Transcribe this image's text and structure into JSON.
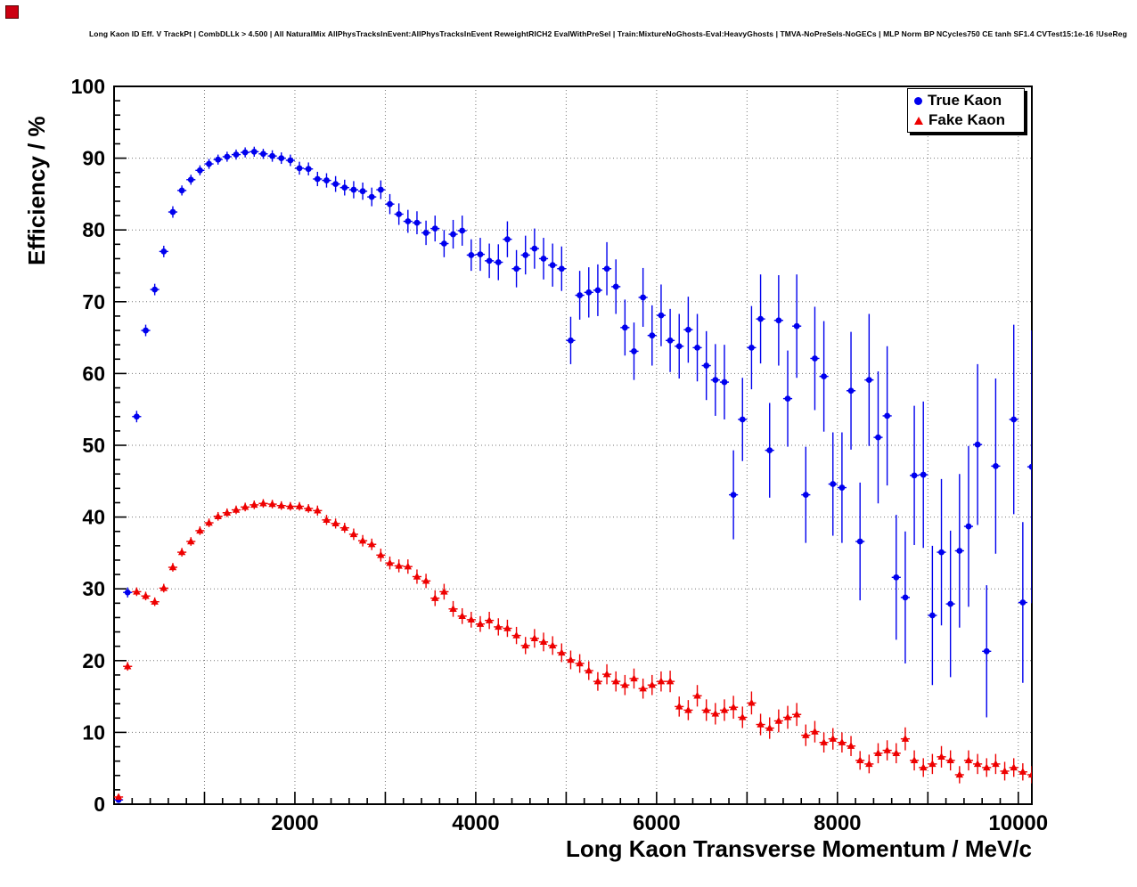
{
  "chart_data": {
    "type": "scatter",
    "title": "Long Kaon ID Eff. V TrackPt | CombDLLk > 4.500 | All NaturalMix AllPhysTracksInEvent:AllPhysTracksInEvent ReweightRICH2 EvalWithPreSel | Train:MixtureNoGhosts-Eval:HeavyGhosts | TMVA-NoPreSels-NoGECs | MLP Norm BP NCycles750 CE tanh SF1.4 CVTest15:1e-16 !UseReg",
    "xlabel": "Long Kaon Transverse Momentum / MeV/c",
    "ylabel": "Efficiency / %",
    "xlim": [
      0,
      10150
    ],
    "ylim": [
      0,
      100
    ],
    "xticks": [
      2000,
      4000,
      6000,
      8000,
      10000
    ],
    "yticks": [
      0,
      10,
      20,
      30,
      40,
      50,
      60,
      70,
      80,
      90,
      100
    ],
    "x_major_step": 1000,
    "x_minor_step": 200,
    "y_major_step": 10,
    "y_minor_step": 2,
    "x_bin_halfwidth": 50,
    "grid": true,
    "grid_style": "dotted",
    "legend_position": "top-right",
    "frame_color": "#000000",
    "background_color": "#ffffff",
    "series": [
      {
        "name": "True Kaon",
        "color": "#0000ee",
        "marker": "circle",
        "points": [
          [
            50,
            0.6,
            0.4
          ],
          [
            150,
            29.5,
            0.7
          ],
          [
            250,
            54.0,
            0.8
          ],
          [
            350,
            66.0,
            0.8
          ],
          [
            450,
            71.7,
            0.8
          ],
          [
            550,
            77.0,
            0.8
          ],
          [
            650,
            82.5,
            0.8
          ],
          [
            750,
            85.5,
            0.7
          ],
          [
            850,
            87.0,
            0.7
          ],
          [
            950,
            88.3,
            0.7
          ],
          [
            1050,
            89.2,
            0.7
          ],
          [
            1150,
            89.8,
            0.7
          ],
          [
            1250,
            90.2,
            0.7
          ],
          [
            1350,
            90.5,
            0.7
          ],
          [
            1450,
            90.8,
            0.7
          ],
          [
            1550,
            90.9,
            0.7
          ],
          [
            1650,
            90.6,
            0.7
          ],
          [
            1750,
            90.3,
            0.8
          ],
          [
            1850,
            90.0,
            0.8
          ],
          [
            1950,
            89.7,
            0.8
          ],
          [
            2050,
            88.6,
            0.9
          ],
          [
            2150,
            88.5,
            0.9
          ],
          [
            2250,
            87.1,
            1.0
          ],
          [
            2350,
            86.9,
            1.0
          ],
          [
            2450,
            86.4,
            1.1
          ],
          [
            2550,
            85.9,
            1.1
          ],
          [
            2650,
            85.6,
            1.2
          ],
          [
            2750,
            85.4,
            1.2
          ],
          [
            2850,
            84.6,
            1.3
          ],
          [
            2950,
            85.6,
            1.3
          ],
          [
            3050,
            83.6,
            1.4
          ],
          [
            3150,
            82.2,
            1.5
          ],
          [
            3250,
            81.2,
            1.6
          ],
          [
            3350,
            81.0,
            1.6
          ],
          [
            3450,
            79.6,
            1.7
          ],
          [
            3550,
            80.2,
            1.8
          ],
          [
            3650,
            78.1,
            1.9
          ],
          [
            3750,
            79.4,
            2.0
          ],
          [
            3850,
            79.9,
            2.1
          ],
          [
            3950,
            76.5,
            2.2
          ],
          [
            4050,
            76.6,
            2.3
          ],
          [
            4150,
            75.7,
            2.4
          ],
          [
            4250,
            75.5,
            2.5
          ],
          [
            4350,
            78.7,
            2.5
          ],
          [
            4450,
            74.6,
            2.6
          ],
          [
            4550,
            76.5,
            2.7
          ],
          [
            4650,
            77.4,
            2.8
          ],
          [
            4750,
            76.0,
            2.9
          ],
          [
            4850,
            75.1,
            3.0
          ],
          [
            4950,
            74.6,
            3.1
          ],
          [
            5050,
            64.6,
            3.3
          ],
          [
            5150,
            70.9,
            3.4
          ],
          [
            5250,
            71.3,
            3.5
          ],
          [
            5350,
            71.6,
            3.6
          ],
          [
            5450,
            74.6,
            3.7
          ],
          [
            5550,
            72.1,
            3.8
          ],
          [
            5650,
            66.4,
            3.9
          ],
          [
            5750,
            63.1,
            4.0
          ],
          [
            5850,
            70.6,
            4.1
          ],
          [
            5950,
            65.3,
            4.2
          ],
          [
            6050,
            68.1,
            4.3
          ],
          [
            6150,
            64.6,
            4.4
          ],
          [
            6250,
            63.8,
            4.5
          ],
          [
            6350,
            66.1,
            4.6
          ],
          [
            6450,
            63.6,
            4.7
          ],
          [
            6550,
            61.1,
            4.8
          ],
          [
            6650,
            59.1,
            5.0
          ],
          [
            6750,
            58.8,
            5.2
          ],
          [
            6850,
            43.1,
            6.2
          ],
          [
            6950,
            53.6,
            5.8
          ],
          [
            7050,
            63.6,
            5.8
          ],
          [
            7150,
            67.6,
            6.2
          ],
          [
            7250,
            49.3,
            6.6
          ],
          [
            7350,
            67.4,
            6.3
          ],
          [
            7450,
            56.5,
            6.7
          ],
          [
            7550,
            66.6,
            7.2
          ],
          [
            7650,
            43.1,
            6.7
          ],
          [
            7750,
            62.1,
            7.2
          ],
          [
            7850,
            59.6,
            7.7
          ],
          [
            7950,
            44.6,
            7.2
          ],
          [
            8050,
            44.1,
            7.7
          ],
          [
            8150,
            57.6,
            8.2
          ],
          [
            8250,
            36.6,
            8.2
          ],
          [
            8350,
            59.1,
            9.2
          ],
          [
            8450,
            51.1,
            9.2
          ],
          [
            8550,
            54.1,
            9.7
          ],
          [
            8650,
            31.6,
            8.7
          ],
          [
            8750,
            28.8,
            9.2
          ],
          [
            8850,
            45.8,
            9.7
          ],
          [
            8950,
            45.9,
            10.2
          ],
          [
            9050,
            26.3,
            9.7
          ],
          [
            9150,
            35.1,
            10.2
          ],
          [
            9250,
            27.9,
            10.2
          ],
          [
            9350,
            35.3,
            10.7
          ],
          [
            9450,
            38.7,
            11.2
          ],
          [
            9550,
            50.1,
            11.2
          ],
          [
            9650,
            21.3,
            9.2
          ],
          [
            9750,
            47.1,
            12.2
          ],
          [
            9950,
            53.6,
            13.2
          ],
          [
            10050,
            28.1,
            11.2
          ],
          [
            10150,
            47.0,
            19.0
          ]
        ]
      },
      {
        "name": "Fake Kaon",
        "color": "#ee0000",
        "marker": "triangle",
        "points": [
          [
            50,
            1.0,
            0.4
          ],
          [
            150,
            19.2,
            0.6
          ],
          [
            250,
            29.6,
            0.6
          ],
          [
            350,
            29.0,
            0.6
          ],
          [
            450,
            28.2,
            0.6
          ],
          [
            550,
            30.1,
            0.6
          ],
          [
            650,
            33.0,
            0.6
          ],
          [
            750,
            35.1,
            0.6
          ],
          [
            850,
            36.6,
            0.6
          ],
          [
            950,
            38.1,
            0.6
          ],
          [
            1050,
            39.2,
            0.6
          ],
          [
            1150,
            40.1,
            0.6
          ],
          [
            1250,
            40.6,
            0.6
          ],
          [
            1350,
            41.0,
            0.6
          ],
          [
            1450,
            41.4,
            0.6
          ],
          [
            1550,
            41.7,
            0.6
          ],
          [
            1650,
            41.9,
            0.6
          ],
          [
            1750,
            41.8,
            0.6
          ],
          [
            1850,
            41.6,
            0.6
          ],
          [
            1950,
            41.5,
            0.6
          ],
          [
            2050,
            41.5,
            0.6
          ],
          [
            2150,
            41.2,
            0.6
          ],
          [
            2250,
            40.9,
            0.7
          ],
          [
            2350,
            39.6,
            0.7
          ],
          [
            2450,
            39.1,
            0.7
          ],
          [
            2550,
            38.5,
            0.7
          ],
          [
            2650,
            37.6,
            0.8
          ],
          [
            2750,
            36.7,
            0.8
          ],
          [
            2850,
            36.2,
            0.8
          ],
          [
            2950,
            34.7,
            0.9
          ],
          [
            3050,
            33.6,
            0.9
          ],
          [
            3150,
            33.2,
            0.9
          ],
          [
            3250,
            33.1,
            1.0
          ],
          [
            3350,
            31.7,
            1.0
          ],
          [
            3450,
            31.1,
            1.0
          ],
          [
            3550,
            28.7,
            1.1
          ],
          [
            3650,
            29.6,
            1.1
          ],
          [
            3750,
            27.2,
            1.1
          ],
          [
            3850,
            26.2,
            1.1
          ],
          [
            3950,
            25.7,
            1.1
          ],
          [
            4050,
            25.1,
            1.1
          ],
          [
            4150,
            25.6,
            1.2
          ],
          [
            4250,
            24.7,
            1.2
          ],
          [
            4350,
            24.5,
            1.2
          ],
          [
            4450,
            23.5,
            1.2
          ],
          [
            4550,
            22.1,
            1.2
          ],
          [
            4650,
            23.1,
            1.3
          ],
          [
            4750,
            22.6,
            1.3
          ],
          [
            4850,
            22.1,
            1.3
          ],
          [
            4950,
            21.1,
            1.3
          ],
          [
            5050,
            20.1,
            1.3
          ],
          [
            5150,
            19.6,
            1.3
          ],
          [
            5250,
            18.6,
            1.3
          ],
          [
            5350,
            17.1,
            1.3
          ],
          [
            5450,
            18.1,
            1.4
          ],
          [
            5550,
            17.1,
            1.4
          ],
          [
            5650,
            16.6,
            1.4
          ],
          [
            5750,
            17.5,
            1.4
          ],
          [
            5850,
            16.1,
            1.4
          ],
          [
            5950,
            16.6,
            1.4
          ],
          [
            6050,
            17.1,
            1.4
          ],
          [
            6150,
            17.1,
            1.5
          ],
          [
            6250,
            13.6,
            1.4
          ],
          [
            6350,
            13.1,
            1.4
          ],
          [
            6450,
            15.1,
            1.5
          ],
          [
            6550,
            13.1,
            1.5
          ],
          [
            6650,
            12.6,
            1.5
          ],
          [
            6750,
            13.1,
            1.5
          ],
          [
            6850,
            13.5,
            1.6
          ],
          [
            6950,
            12.1,
            1.5
          ],
          [
            7050,
            14.1,
            1.6
          ],
          [
            7150,
            11.1,
            1.5
          ],
          [
            7250,
            10.6,
            1.5
          ],
          [
            7350,
            11.6,
            1.6
          ],
          [
            7450,
            12.1,
            1.6
          ],
          [
            7550,
            12.5,
            1.6
          ],
          [
            7650,
            9.6,
            1.5
          ],
          [
            7750,
            10.1,
            1.5
          ],
          [
            7850,
            8.6,
            1.4
          ],
          [
            7950,
            9.1,
            1.5
          ],
          [
            8050,
            8.6,
            1.4
          ],
          [
            8150,
            8.1,
            1.4
          ],
          [
            8250,
            6.1,
            1.3
          ],
          [
            8350,
            5.6,
            1.3
          ],
          [
            8450,
            7.1,
            1.4
          ],
          [
            8550,
            7.5,
            1.4
          ],
          [
            8650,
            7.1,
            1.4
          ],
          [
            8750,
            9.1,
            1.6
          ],
          [
            8850,
            6.1,
            1.4
          ],
          [
            8950,
            5.1,
            1.3
          ],
          [
            9050,
            5.6,
            1.4
          ],
          [
            9150,
            6.6,
            1.5
          ],
          [
            9250,
            6.1,
            1.4
          ],
          [
            9350,
            4.1,
            1.2
          ],
          [
            9450,
            6.1,
            1.4
          ],
          [
            9550,
            5.6,
            1.4
          ],
          [
            9650,
            5.1,
            1.3
          ],
          [
            9750,
            5.6,
            1.4
          ],
          [
            9850,
            4.6,
            1.3
          ],
          [
            9950,
            5.1,
            1.3
          ],
          [
            10050,
            4.5,
            1.2
          ],
          [
            10150,
            4.1,
            1.2
          ]
        ]
      }
    ]
  }
}
